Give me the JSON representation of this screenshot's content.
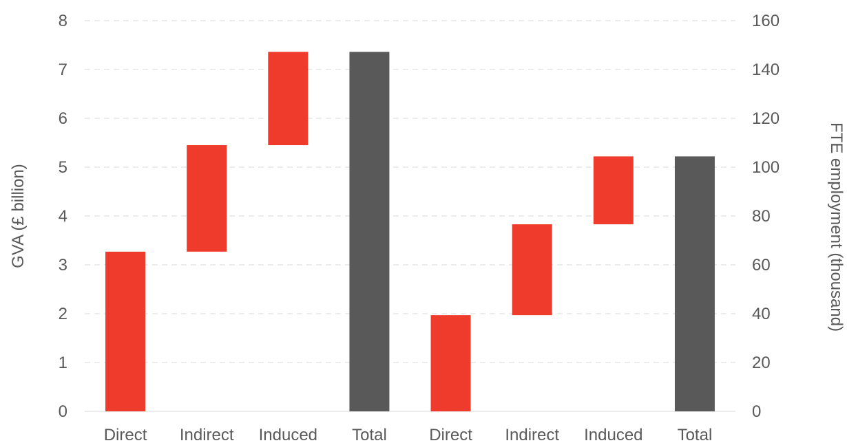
{
  "chart_data": {
    "type": "bar",
    "subtype": "waterfall",
    "title": "",
    "left_axis": {
      "label": "GVA (£ billion)",
      "ylim": [
        0,
        8
      ],
      "ticks": [
        "0",
        "1",
        "2",
        "3",
        "4",
        "5",
        "6",
        "7",
        "8"
      ]
    },
    "right_axis": {
      "label": "FTE employment (thousand)",
      "ylim": [
        0,
        160
      ],
      "ticks": [
        "0",
        "20",
        "40",
        "60",
        "80",
        "100",
        "120",
        "140",
        "160"
      ]
    },
    "grid": true,
    "colors": {
      "component": "#ef3b2c",
      "total": "#595959"
    },
    "groups": [
      {
        "axis": "left",
        "categories": [
          "Direct",
          "Indirect",
          "Induced",
          "Total"
        ],
        "values": [
          3.27,
          2.18,
          1.91,
          7.36
        ],
        "kinds": [
          "component",
          "component",
          "component",
          "total"
        ]
      },
      {
        "axis": "right",
        "categories": [
          "Direct",
          "Indirect",
          "Induced",
          "Total"
        ],
        "values": [
          39.4,
          37.2,
          27.8,
          104.4
        ],
        "kinds": [
          "component",
          "component",
          "component",
          "total"
        ]
      }
    ]
  }
}
